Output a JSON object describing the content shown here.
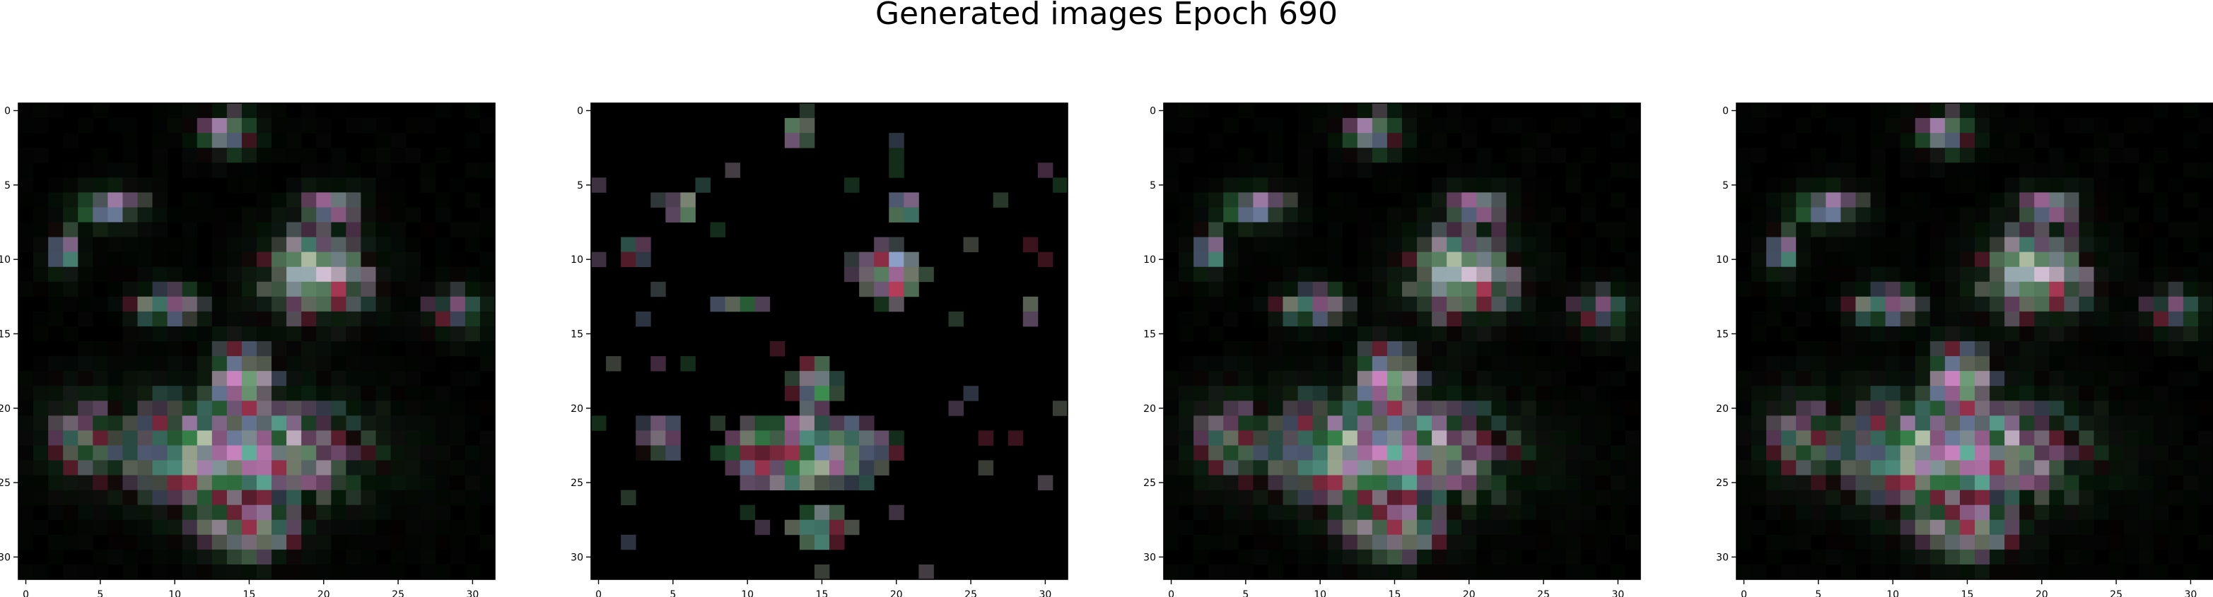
{
  "figure": {
    "title": "Generated images Epoch 690"
  },
  "chart_data": [
    {
      "type": "heatmap",
      "panel": 1,
      "xlabel": "",
      "ylabel": "",
      "xlim": [
        -0.5,
        31.5
      ],
      "ylim": [
        31.5,
        -0.5
      ],
      "xticks": [
        0,
        5,
        10,
        15,
        20,
        25,
        30
      ],
      "yticks": [
        0,
        5,
        10,
        15,
        20,
        25,
        30
      ],
      "grid": false,
      "seed": 11,
      "sparse": false
    },
    {
      "type": "heatmap",
      "panel": 2,
      "xlabel": "",
      "ylabel": "",
      "xlim": [
        -0.5,
        31.5
      ],
      "ylim": [
        31.5,
        -0.5
      ],
      "xticks": [
        0,
        5,
        10,
        15,
        20,
        25,
        30
      ],
      "yticks": [
        0,
        5,
        10,
        15,
        20,
        25,
        30
      ],
      "grid": false,
      "seed": 29,
      "sparse": true
    },
    {
      "type": "heatmap",
      "panel": 3,
      "xlabel": "",
      "ylabel": "",
      "xlim": [
        -0.5,
        31.5
      ],
      "ylim": [
        31.5,
        -0.5
      ],
      "xticks": [
        0,
        5,
        10,
        15,
        20,
        25,
        30
      ],
      "yticks": [
        0,
        5,
        10,
        15,
        20,
        25,
        30
      ],
      "grid": false,
      "seed": 11,
      "sparse": false
    },
    {
      "type": "heatmap",
      "panel": 4,
      "xlabel": "",
      "ylabel": "",
      "xlim": [
        -0.5,
        31.5
      ],
      "ylim": [
        31.5,
        -0.5
      ],
      "xticks": [
        0,
        5,
        10,
        15,
        20,
        25,
        30
      ],
      "yticks": [
        0,
        5,
        10,
        15,
        20,
        25,
        30
      ],
      "grid": false,
      "seed": 11,
      "sparse": false
    }
  ]
}
